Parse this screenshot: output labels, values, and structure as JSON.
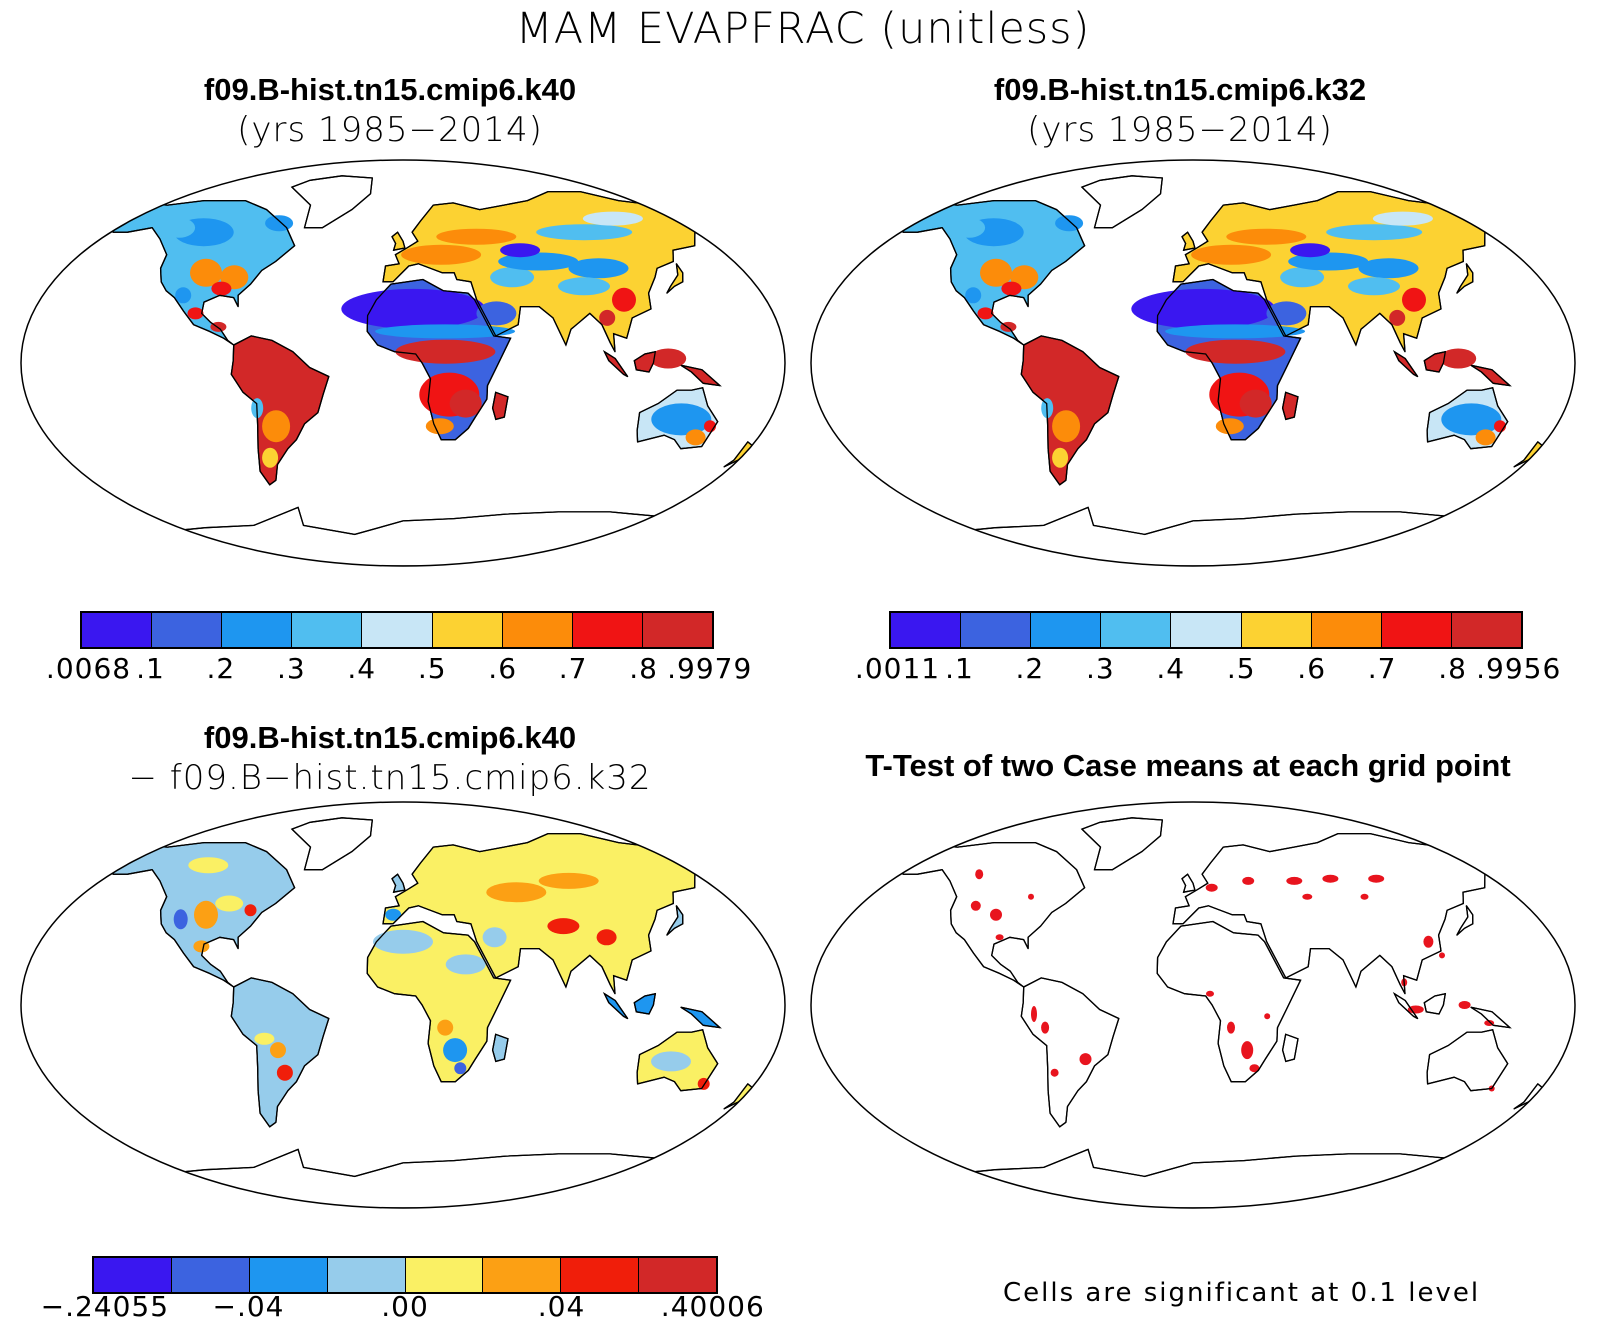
{
  "title": "MAM EVAPFRAC (unitless)",
  "panels": {
    "case1": {
      "name": "f09.B-hist.tn15.cmip6.k40",
      "years": "(yrs 1985−2014)"
    },
    "case2": {
      "name": "f09.B-hist.tn15.cmip6.k32",
      "years": "(yrs 1985−2014)"
    },
    "diff": {
      "line1": "f09.B-hist.tn15.cmip6.k40",
      "line2": "− f09.B−hist.tn15.cmip6.k32"
    },
    "ttest": {
      "title": "T-Test of two Case means at each grid point",
      "note": "Cells are significant at 0.1 level"
    }
  },
  "colorbars": {
    "case1": {
      "colors": [
        "#3a17f0",
        "#3c63e0",
        "#1e96f0",
        "#50bef0",
        "#c8e6f6",
        "#fcd232",
        "#fc8c0a",
        "#f01414",
        "#d22828"
      ],
      "labels": [
        ".0068",
        ".1",
        ".2",
        ".3",
        ".4",
        ".5",
        ".6",
        ".7",
        ".8",
        ".9979"
      ]
    },
    "case2": {
      "colors": [
        "#3a17f0",
        "#3c63e0",
        "#1e96f0",
        "#50bef0",
        "#c8e6f6",
        "#fcd232",
        "#fc8c0a",
        "#f01414",
        "#d22828"
      ],
      "labels": [
        ".0011",
        ".1",
        ".2",
        ".3",
        ".4",
        ".5",
        ".6",
        ".7",
        ".8",
        ".9956"
      ]
    },
    "diff": {
      "colors": [
        "#3a17f0",
        "#3c63e0",
        "#1e96f0",
        "#96cceb",
        "#faf064",
        "#fca014",
        "#f01e0a",
        "#d22828"
      ],
      "labels": [
        "−.24055",
        "−.04",
        ".00",
        ".04",
        ".40006"
      ]
    }
  },
  "significance_color": "#e8141e"
}
